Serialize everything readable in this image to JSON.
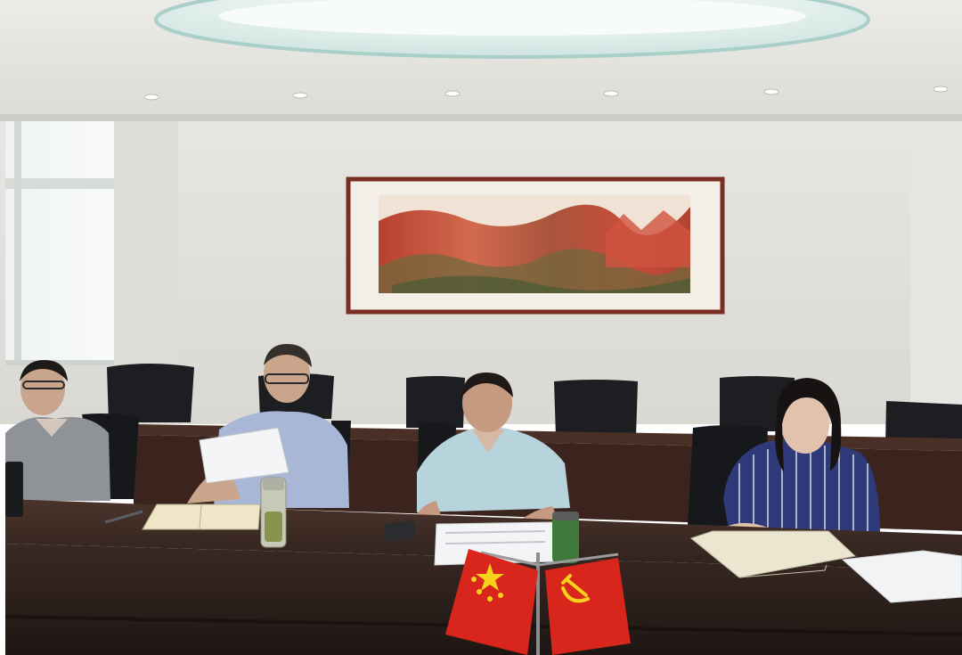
{
  "scene": {
    "palette": {
      "ceiling": "#e9e7e2",
      "wall": "#e2e1dd",
      "window": "#f2f5f4",
      "table_top": "#3b2a22",
      "table_front": "#2b1f1a",
      "chair": "#1b1d21",
      "frame": "#7a2e22",
      "painting_red": "#c4483a",
      "flag_red": "#d9261c",
      "flag_gold": "#f7d21c"
    },
    "people": [
      {
        "name": "person-left",
        "shirt": "#8f9296"
      },
      {
        "name": "person-second",
        "shirt": "#a9b7d6"
      },
      {
        "name": "person-center",
        "shirt": "#b7d3dc"
      },
      {
        "name": "person-right",
        "shirt": "#2f3a78"
      }
    ]
  }
}
